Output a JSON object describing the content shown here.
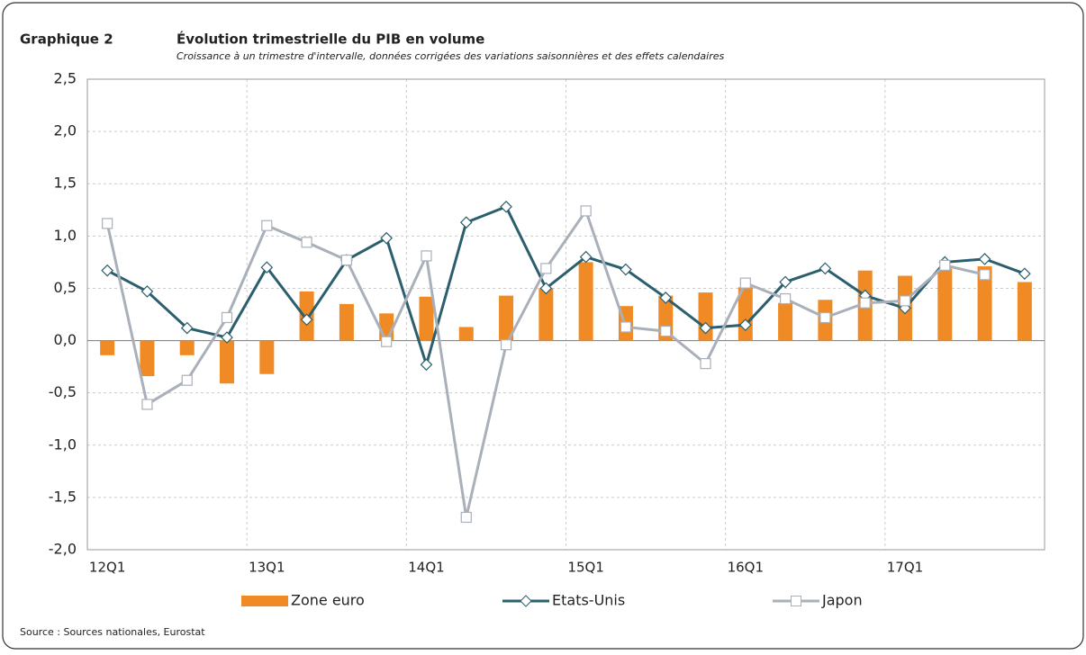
{
  "chart_data": {
    "type": "bar-line",
    "label": "Graphique 2",
    "title": "Évolution trimestrielle du PIB en volume",
    "subtitle": "Croissance à un trimestre d'intervalle, données corrigées des variations saisonnières et des effets calendaires",
    "source": "Source : Sources nationales, Eurostat",
    "categories": [
      "12Q1",
      null,
      null,
      null,
      "13Q1",
      null,
      null,
      null,
      "14Q1",
      null,
      null,
      null,
      "15Q1",
      null,
      null,
      null,
      "16Q1",
      null,
      null,
      null,
      "17Q1",
      null,
      null,
      null
    ],
    "series": [
      {
        "name": "Zone euro",
        "kind": "bar",
        "color": "#f08a24",
        "values": [
          -0.14,
          -0.34,
          -0.14,
          -0.41,
          -0.32,
          0.47,
          0.35,
          0.26,
          0.42,
          0.13,
          0.43,
          0.5,
          0.75,
          0.33,
          0.43,
          0.46,
          0.51,
          0.36,
          0.39,
          0.67,
          0.62,
          0.69,
          0.71,
          0.56
        ]
      },
      {
        "name": "Etats-Unis",
        "kind": "line",
        "marker": "diamond",
        "color": "#2b5f6e",
        "values": [
          0.67,
          0.47,
          0.12,
          0.03,
          0.7,
          0.2,
          0.77,
          0.98,
          -0.23,
          1.13,
          1.28,
          0.5,
          0.8,
          0.68,
          0.41,
          0.12,
          0.15,
          0.56,
          0.69,
          0.43,
          0.31,
          0.75,
          0.78,
          0.64
        ]
      },
      {
        "name": "Japon",
        "kind": "line",
        "marker": "square",
        "color": "#a9b0ba",
        "values": [
          1.12,
          -0.61,
          -0.38,
          0.22,
          1.1,
          0.94,
          0.77,
          -0.01,
          0.81,
          -1.69,
          -0.04,
          0.69,
          1.24,
          0.13,
          0.09,
          -0.22,
          0.55,
          0.4,
          0.22,
          0.36,
          0.38,
          0.72,
          0.63,
          null
        ]
      }
    ],
    "ylim": [
      -2.0,
      2.5
    ],
    "yticks": [
      {
        "value": -2.0,
        "label": "-2,0"
      },
      {
        "value": -1.5,
        "label": "-1,5"
      },
      {
        "value": -1.0,
        "label": "-1,0"
      },
      {
        "value": -0.5,
        "label": "-0,5"
      },
      {
        "value": 0.0,
        "label": "0,0"
      },
      {
        "value": 0.5,
        "label": "0,5"
      },
      {
        "value": 1.0,
        "label": "1,0"
      },
      {
        "value": 1.5,
        "label": "1,5"
      },
      {
        "value": 2.0,
        "label": "2,0"
      },
      {
        "value": 2.5,
        "label": "2,5"
      }
    ],
    "grid": true,
    "legend": "bottom"
  }
}
